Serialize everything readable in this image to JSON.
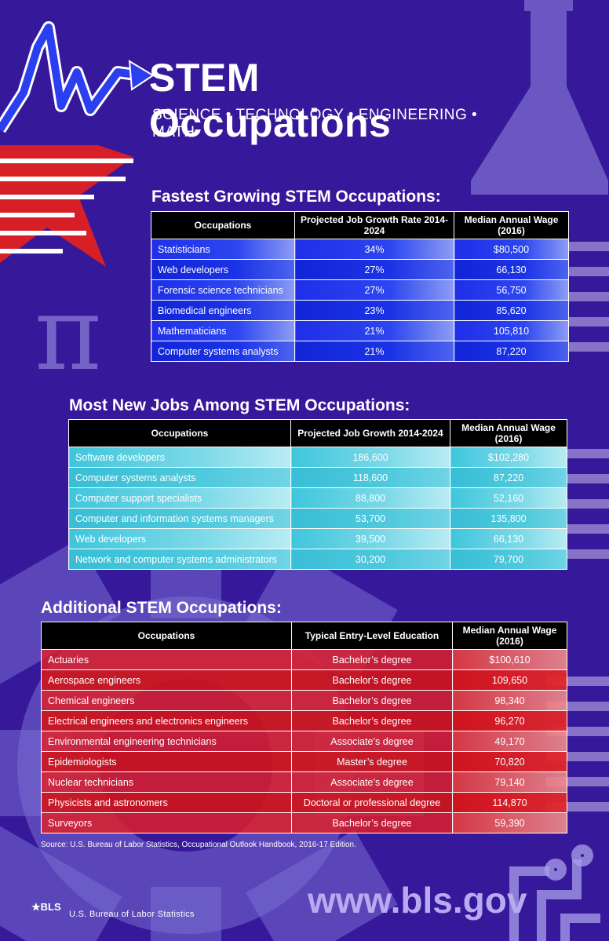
{
  "header": {
    "title": "STEM Occupations",
    "subtitle": "SCIENCE • TECHNOLOGY • ENGINEERING • MATH"
  },
  "colors": {
    "background": "#36189a",
    "table1_accent": "#1f2fe8",
    "table2_accent": "#3fc6dc",
    "table3_accent": "#e22026",
    "header_row": "#000000"
  },
  "decor": {
    "icons": [
      "chart-arrow-icon",
      "star-flag-icon",
      "flask-icon",
      "pi-icon",
      "gear-icon",
      "circuit-icon"
    ],
    "pi_symbol": "π"
  },
  "fastest_growing": {
    "title": "Fastest Growing STEM Occupations:",
    "headers": [
      "Occupations",
      "Projected Job Growth Rate 2014-2024",
      "Median Annual Wage (2016)"
    ],
    "rows": [
      [
        "Statisticians",
        "34%",
        "$80,500"
      ],
      [
        "Web developers",
        "27%",
        "66,130"
      ],
      [
        "Forensic science technicians",
        "27%",
        "56,750"
      ],
      [
        "Biomedical engineers",
        "23%",
        "85,620"
      ],
      [
        "Mathematicians",
        "21%",
        "105,810"
      ],
      [
        "Computer systems analysts",
        "21%",
        "87,220"
      ]
    ]
  },
  "most_new_jobs": {
    "title": "Most New Jobs Among STEM Occupations:",
    "headers": [
      "Occupations",
      "Projected Job Growth 2014-2024",
      "Median Annual Wage (2016)"
    ],
    "rows": [
      [
        "Software developers",
        "186,600",
        "$102,280"
      ],
      [
        "Computer systems analysts",
        "118,600",
        "87,220"
      ],
      [
        "Computer support specialists",
        "88,800",
        "52,160"
      ],
      [
        "Computer and information systems managers",
        "53,700",
        "135,800"
      ],
      [
        "Web developers",
        "39,500",
        "66,130"
      ],
      [
        "Network and computer systems administrators",
        "30,200",
        "79,700"
      ]
    ]
  },
  "additional": {
    "title": "Additional STEM Occupations:",
    "headers": [
      "Occupations",
      "Typical Entry-Level Education",
      "Median Annual Wage (2016)"
    ],
    "rows": [
      [
        "Actuaries",
        "Bachelor’s degree",
        "$100,610"
      ],
      [
        "Aerospace engineers",
        "Bachelor’s degree",
        "109,650"
      ],
      [
        "Chemical engineers",
        "Bachelor’s degree",
        "98,340"
      ],
      [
        "Electrical engineers and electronics engineers",
        "Bachelor’s degree",
        "96,270"
      ],
      [
        "Environmental engineering technicians",
        "Associate’s degree",
        "49,170"
      ],
      [
        "Epidemiologists",
        "Master’s degree",
        "70,820"
      ],
      [
        "Nuclear technicians",
        "Associate’s degree",
        "79,140"
      ],
      [
        "Physicists and astronomers",
        "Doctoral or professional degree",
        "114,870"
      ],
      [
        "Surveyors",
        "Bachelor’s degree",
        "59,390"
      ]
    ]
  },
  "footer": {
    "source": "Source: U.S. Bureau of Labor Statistics, Occupational Outlook Handbook, 2016-17 Edition.",
    "url": "www.bls.gov",
    "logo_text": "BLS",
    "agency": "U.S. Bureau of Labor Statistics"
  }
}
